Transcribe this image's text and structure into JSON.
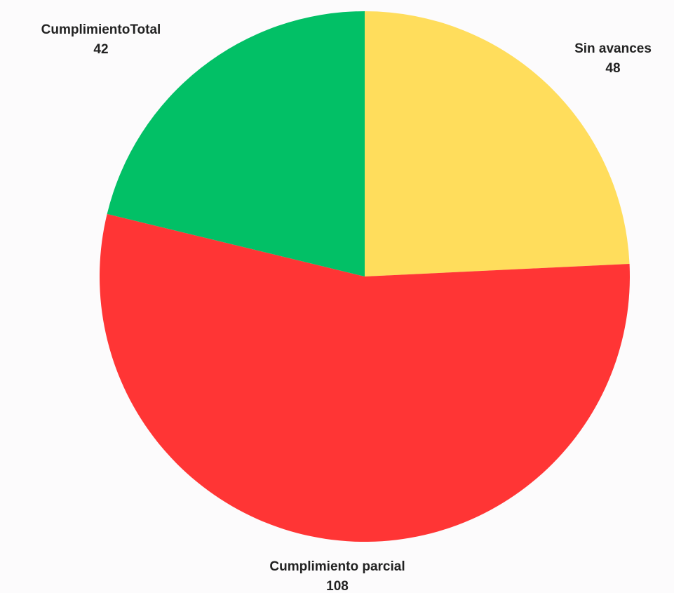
{
  "chart_data": {
    "type": "pie",
    "title": "",
    "start_angle_deg": 0,
    "direction": "clockwise",
    "slices": [
      {
        "label": "Sin avances",
        "value": 48,
        "color": "#ffdd5c"
      },
      {
        "label": "Cumplimiento parcial",
        "value": 108,
        "color": "#ff3535"
      },
      {
        "label": "CumplimientoTotal",
        "value": 42,
        "color": "#02c066"
      }
    ],
    "legend": "none"
  }
}
